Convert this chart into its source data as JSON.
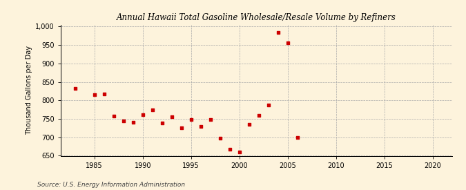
{
  "title": "Annual Hawaii Total Gasoline Wholesale/Resale Volume by Refiners",
  "ylabel": "Thousand Gallons per Day",
  "source": "Source: U.S. Energy Information Administration",
  "background_color": "#fdf3dc",
  "marker_color": "#cc0000",
  "xlim": [
    1981.5,
    2022
  ],
  "ylim": [
    650,
    1005
  ],
  "yticks": [
    650,
    700,
    750,
    800,
    850,
    900,
    950,
    1000
  ],
  "xticks": [
    1985,
    1990,
    1995,
    2000,
    2005,
    2010,
    2015,
    2020
  ],
  "years": [
    1983,
    1985,
    1986,
    1987,
    1988,
    1989,
    1990,
    1991,
    1992,
    1993,
    1994,
    1995,
    1996,
    1997,
    1998,
    1999,
    2000,
    2001,
    2002,
    2003,
    2004,
    2005,
    2006
  ],
  "values": [
    833,
    815,
    818,
    758,
    745,
    740,
    761,
    775,
    738,
    755,
    725,
    748,
    730,
    748,
    697,
    667,
    660,
    735,
    760,
    787,
    984,
    956,
    700
  ]
}
